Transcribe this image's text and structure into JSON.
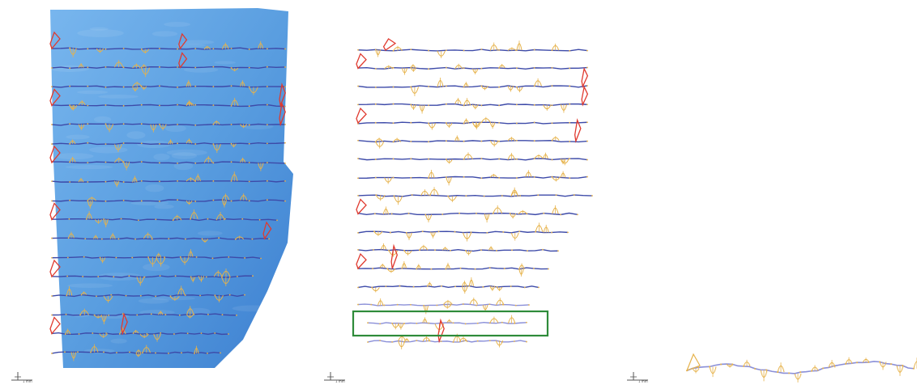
{
  "figure": {
    "panels": [
      {
        "id": "surface-overlay"
      },
      {
        "id": "profiles-only"
      },
      {
        "id": "single-profile"
      }
    ],
    "colors": {
      "surface": "#5a9ee0",
      "surface_dark": "#3c7fd0",
      "line": "#3d4aa8",
      "line_light": "#8a8fd8",
      "glyph_small": "#e6b24a",
      "glyph_large": "#e03a2f",
      "highlight_box": "#2e8b3a",
      "axis": "#555555"
    },
    "scale_bar_label": "1 mm",
    "profile_count": 17
  }
}
